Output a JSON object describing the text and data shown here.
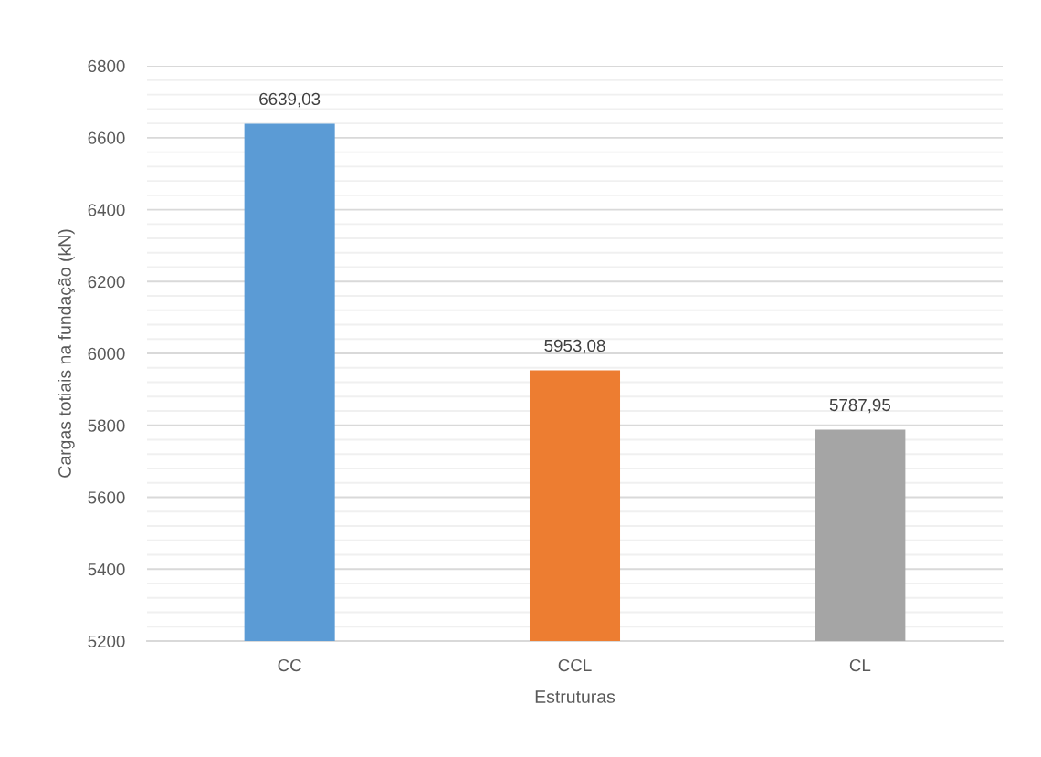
{
  "chart_data": {
    "type": "bar",
    "xlabel": "Estruturas",
    "ylabel": "Cargas totiais na fundação (kN)",
    "categories": [
      "CC",
      "CCL",
      "CL"
    ],
    "values": [
      6639.03,
      5953.08,
      5787.95
    ],
    "colors": [
      "#5b9bd5",
      "#ed7d31",
      "#a5a5a5"
    ],
    "value_labels": [
      "6639,03",
      "5953,08",
      "5787,95"
    ],
    "ylim": [
      5200,
      6800
    ],
    "yticks": [
      5200,
      {
        "value": 5240,
        "label": null
      },
      {
        "value": 5280,
        "label": null
      },
      {
        "value": 5320,
        "label": null
      },
      {
        "value": 5360,
        "label": null
      },
      5400,
      {
        "value": 5440,
        "label": null
      },
      {
        "value": 5480,
        "label": null
      },
      {
        "value": 5520,
        "label": null
      },
      {
        "value": 5560,
        "label": null
      },
      5600,
      {
        "value": 5640,
        "label": null
      },
      {
        "value": 5680,
        "label": null
      },
      {
        "value": 5720,
        "label": null
      },
      {
        "value": 5760,
        "label": null
      },
      5800,
      {
        "value": 5840,
        "label": null
      },
      {
        "value": 5880,
        "label": null
      },
      {
        "value": 5920,
        "label": null
      },
      {
        "value": 5960,
        "label": null
      },
      6000,
      {
        "value": 6040,
        "label": null
      },
      {
        "value": 6080,
        "label": null
      },
      {
        "value": 6120,
        "label": null
      },
      {
        "value": 6160,
        "label": null
      },
      6200,
      {
        "value": 6240,
        "label": null
      },
      {
        "value": 6280,
        "label": null
      },
      {
        "value": 6320,
        "label": null
      },
      {
        "value": 6360,
        "label": null
      },
      6400,
      {
        "value": 6440,
        "label": null
      },
      {
        "value": 6480,
        "label": null
      },
      {
        "value": 6520,
        "label": null
      },
      {
        "value": 6560,
        "label": null
      },
      6600,
      {
        "value": 6640,
        "label": null
      },
      {
        "value": 6680,
        "label": null
      },
      {
        "value": 6720,
        "label": null
      },
      {
        "value": 6760,
        "label": null
      },
      6800
    ],
    "grid": "y"
  }
}
